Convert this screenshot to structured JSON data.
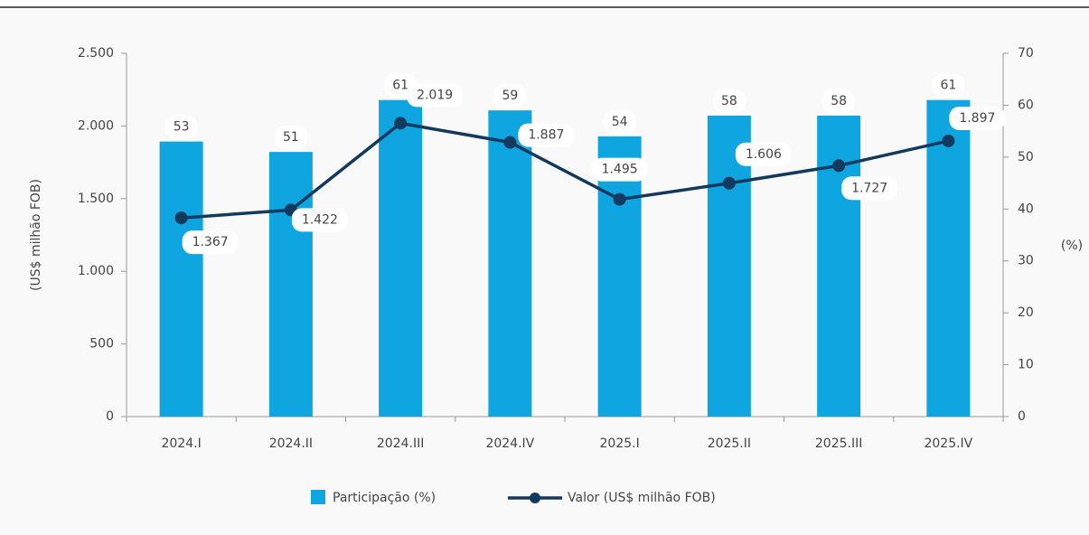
{
  "chart_data": {
    "type": "bar_line",
    "categories": [
      "2024.I",
      "2024.II",
      "2024.III",
      "2024.IV",
      "2025.I",
      "2025.II",
      "2025.III",
      "2025.IV"
    ],
    "series": [
      {
        "name": "Participação (%)",
        "type": "bar",
        "color": "#0ea5e0",
        "axis": "y2",
        "values": [
          53,
          51,
          61,
          59,
          54,
          58,
          58,
          61
        ]
      },
      {
        "name": "Valor (US$ milhão FOB)",
        "type": "line",
        "color": "#12395e",
        "axis": "y",
        "values": [
          1367,
          1422,
          2019,
          1887,
          1495,
          1606,
          1727,
          1897
        ],
        "value_labels": [
          "1.367",
          "1.422",
          "2.019",
          "1.887",
          "1.495",
          "1.606",
          "1.727",
          "1.897"
        ]
      }
    ],
    "ylabel": "(US$ milhão FOB)",
    "y2label": "(%)",
    "ylim": [
      0,
      2500
    ],
    "yticks": [
      0,
      500,
      {
        "value": 1000,
        "label": "1.000"
      },
      {
        "value": 1500,
        "label": "1.500"
      },
      {
        "value": 2000,
        "label": "2.000"
      },
      {
        "value": 2500,
        "label": "2.500"
      }
    ],
    "y2lim": [
      0,
      70
    ],
    "y2ticks": [
      0,
      10,
      20,
      30,
      40,
      50,
      60,
      70
    ],
    "legend": "bottom"
  }
}
